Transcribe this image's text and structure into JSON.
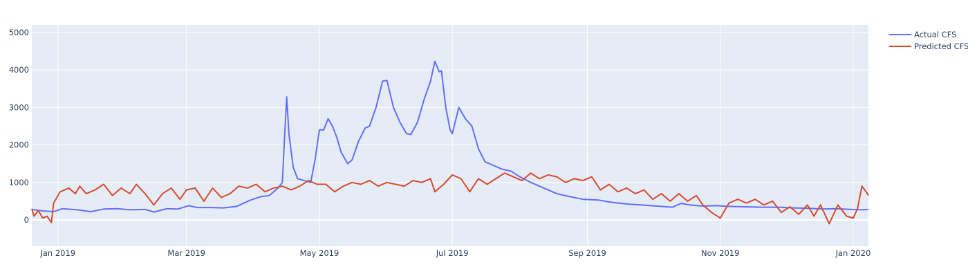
{
  "chart_data": {
    "type": "line",
    "title": "",
    "xlabel": "",
    "ylabel": "",
    "xlim": [
      "2018-12-20",
      "2020-01-08"
    ],
    "ylim": [
      -700,
      5200
    ],
    "x_ticks": [
      {
        "date": "2019-01-01",
        "label": "Jan 2019"
      },
      {
        "date": "2019-03-01",
        "label": "Mar 2019"
      },
      {
        "date": "2019-05-01",
        "label": "May 2019"
      },
      {
        "date": "2019-07-01",
        "label": "Jul 2019"
      },
      {
        "date": "2019-09-01",
        "label": "Sep 2019"
      },
      {
        "date": "2019-11-01",
        "label": "Nov 2019"
      },
      {
        "date": "2020-01-01",
        "label": "Jan 2020"
      }
    ],
    "y_ticks": [
      0,
      1000,
      2000,
      3000,
      4000,
      5000
    ],
    "grid": true,
    "legend_position": "top-right",
    "plot_background": "#e5ecf6",
    "series": [
      {
        "name": "Actual CFS",
        "color": "#636efa",
        "points": [
          [
            "2018-12-20",
            280
          ],
          [
            "2018-12-25",
            240
          ],
          [
            "2018-12-30",
            220
          ],
          [
            "2019-01-03",
            300
          ],
          [
            "2019-01-10",
            270
          ],
          [
            "2019-01-16",
            220
          ],
          [
            "2019-01-22",
            290
          ],
          [
            "2019-01-28",
            300
          ],
          [
            "2019-02-03",
            270
          ],
          [
            "2019-02-10",
            280
          ],
          [
            "2019-02-14",
            210
          ],
          [
            "2019-02-20",
            300
          ],
          [
            "2019-02-25",
            290
          ],
          [
            "2019-03-02",
            380
          ],
          [
            "2019-03-06",
            330
          ],
          [
            "2019-03-12",
            330
          ],
          [
            "2019-03-18",
            320
          ],
          [
            "2019-03-24",
            360
          ],
          [
            "2019-03-30",
            520
          ],
          [
            "2019-04-04",
            620
          ],
          [
            "2019-04-08",
            650
          ],
          [
            "2019-04-12",
            850
          ],
          [
            "2019-04-14",
            1000
          ],
          [
            "2019-04-15",
            2200
          ],
          [
            "2019-04-16",
            3280
          ],
          [
            "2019-04-17",
            2300
          ],
          [
            "2019-04-19",
            1400
          ],
          [
            "2019-04-21",
            1100
          ],
          [
            "2019-04-24",
            1050
          ],
          [
            "2019-04-27",
            1000
          ],
          [
            "2019-04-29",
            1600
          ],
          [
            "2019-05-01",
            2400
          ],
          [
            "2019-05-03",
            2400
          ],
          [
            "2019-05-05",
            2700
          ],
          [
            "2019-05-07",
            2500
          ],
          [
            "2019-05-09",
            2200
          ],
          [
            "2019-05-11",
            1800
          ],
          [
            "2019-05-14",
            1500
          ],
          [
            "2019-05-16",
            1600
          ],
          [
            "2019-05-19",
            2100
          ],
          [
            "2019-05-22",
            2450
          ],
          [
            "2019-05-24",
            2500
          ],
          [
            "2019-05-27",
            3000
          ],
          [
            "2019-05-30",
            3700
          ],
          [
            "2019-06-01",
            3720
          ],
          [
            "2019-06-04",
            3000
          ],
          [
            "2019-06-07",
            2600
          ],
          [
            "2019-06-10",
            2300
          ],
          [
            "2019-06-12",
            2280
          ],
          [
            "2019-06-15",
            2600
          ],
          [
            "2019-06-18",
            3200
          ],
          [
            "2019-06-21",
            3700
          ],
          [
            "2019-06-23",
            4230
          ],
          [
            "2019-06-25",
            3950
          ],
          [
            "2019-06-26",
            3980
          ],
          [
            "2019-06-28",
            3000
          ],
          [
            "2019-06-30",
            2400
          ],
          [
            "2019-07-01",
            2300
          ],
          [
            "2019-07-04",
            3000
          ],
          [
            "2019-07-07",
            2700
          ],
          [
            "2019-07-10",
            2500
          ],
          [
            "2019-07-13",
            1900
          ],
          [
            "2019-07-16",
            1550
          ],
          [
            "2019-07-20",
            1450
          ],
          [
            "2019-07-24",
            1350
          ],
          [
            "2019-07-28",
            1300
          ],
          [
            "2019-08-01",
            1150
          ],
          [
            "2019-08-06",
            1000
          ],
          [
            "2019-08-12",
            850
          ],
          [
            "2019-08-18",
            700
          ],
          [
            "2019-08-24",
            620
          ],
          [
            "2019-08-30",
            550
          ],
          [
            "2019-09-06",
            530
          ],
          [
            "2019-09-12",
            470
          ],
          [
            "2019-09-20",
            420
          ],
          [
            "2019-09-28",
            390
          ],
          [
            "2019-10-05",
            360
          ],
          [
            "2019-10-10",
            340
          ],
          [
            "2019-10-14",
            440
          ],
          [
            "2019-10-18",
            400
          ],
          [
            "2019-10-24",
            370
          ],
          [
            "2019-10-30",
            380
          ],
          [
            "2019-11-05",
            360
          ],
          [
            "2019-11-12",
            350
          ],
          [
            "2019-11-20",
            340
          ],
          [
            "2019-11-28",
            340
          ],
          [
            "2019-12-05",
            320
          ],
          [
            "2019-12-12",
            310
          ],
          [
            "2019-12-18",
            290
          ],
          [
            "2019-12-24",
            300
          ],
          [
            "2019-12-31",
            280
          ],
          [
            "2020-01-05",
            270
          ],
          [
            "2020-01-08",
            280
          ]
        ]
      },
      {
        "name": "Predicted CFS",
        "color": "#d64a2e",
        "points": [
          [
            "2018-12-20",
            300
          ],
          [
            "2018-12-21",
            100
          ],
          [
            "2018-12-23",
            250
          ],
          [
            "2018-12-25",
            50
          ],
          [
            "2018-12-27",
            100
          ],
          [
            "2018-12-29",
            -70
          ],
          [
            "2018-12-30",
            450
          ],
          [
            "2019-01-02",
            750
          ],
          [
            "2019-01-06",
            850
          ],
          [
            "2019-01-09",
            700
          ],
          [
            "2019-01-11",
            900
          ],
          [
            "2019-01-14",
            700
          ],
          [
            "2019-01-18",
            800
          ],
          [
            "2019-01-22",
            950
          ],
          [
            "2019-01-26",
            650
          ],
          [
            "2019-01-30",
            850
          ],
          [
            "2019-02-03",
            700
          ],
          [
            "2019-02-06",
            950
          ],
          [
            "2019-02-10",
            700
          ],
          [
            "2019-02-14",
            400
          ],
          [
            "2019-02-18",
            700
          ],
          [
            "2019-02-22",
            850
          ],
          [
            "2019-02-26",
            550
          ],
          [
            "2019-03-01",
            800
          ],
          [
            "2019-03-05",
            850
          ],
          [
            "2019-03-09",
            500
          ],
          [
            "2019-03-13",
            850
          ],
          [
            "2019-03-17",
            600
          ],
          [
            "2019-03-21",
            700
          ],
          [
            "2019-03-25",
            900
          ],
          [
            "2019-03-29",
            850
          ],
          [
            "2019-04-02",
            950
          ],
          [
            "2019-04-06",
            750
          ],
          [
            "2019-04-10",
            850
          ],
          [
            "2019-04-14",
            900
          ],
          [
            "2019-04-18",
            800
          ],
          [
            "2019-04-22",
            900
          ],
          [
            "2019-04-26",
            1050
          ],
          [
            "2019-04-30",
            950
          ],
          [
            "2019-05-04",
            950
          ],
          [
            "2019-05-08",
            750
          ],
          [
            "2019-05-12",
            900
          ],
          [
            "2019-05-16",
            1000
          ],
          [
            "2019-05-20",
            950
          ],
          [
            "2019-05-24",
            1050
          ],
          [
            "2019-05-28",
            900
          ],
          [
            "2019-06-01",
            1000
          ],
          [
            "2019-06-05",
            950
          ],
          [
            "2019-06-09",
            900
          ],
          [
            "2019-06-13",
            1050
          ],
          [
            "2019-06-17",
            1000
          ],
          [
            "2019-06-21",
            1100
          ],
          [
            "2019-06-23",
            750
          ],
          [
            "2019-06-27",
            950
          ],
          [
            "2019-07-01",
            1200
          ],
          [
            "2019-07-05",
            1100
          ],
          [
            "2019-07-09",
            750
          ],
          [
            "2019-07-13",
            1100
          ],
          [
            "2019-07-17",
            950
          ],
          [
            "2019-07-21",
            1100
          ],
          [
            "2019-07-25",
            1250
          ],
          [
            "2019-07-29",
            1150
          ],
          [
            "2019-08-02",
            1050
          ],
          [
            "2019-08-06",
            1250
          ],
          [
            "2019-08-10",
            1100
          ],
          [
            "2019-08-14",
            1200
          ],
          [
            "2019-08-18",
            1150
          ],
          [
            "2019-08-22",
            1000
          ],
          [
            "2019-08-26",
            1100
          ],
          [
            "2019-08-30",
            1050
          ],
          [
            "2019-09-03",
            1150
          ],
          [
            "2019-09-07",
            800
          ],
          [
            "2019-09-11",
            950
          ],
          [
            "2019-09-15",
            750
          ],
          [
            "2019-09-19",
            850
          ],
          [
            "2019-09-23",
            700
          ],
          [
            "2019-09-27",
            800
          ],
          [
            "2019-10-01",
            550
          ],
          [
            "2019-10-05",
            700
          ],
          [
            "2019-10-09",
            500
          ],
          [
            "2019-10-13",
            700
          ],
          [
            "2019-10-17",
            500
          ],
          [
            "2019-10-21",
            650
          ],
          [
            "2019-10-24",
            400
          ],
          [
            "2019-10-28",
            200
          ],
          [
            "2019-11-01",
            50
          ],
          [
            "2019-11-05",
            450
          ],
          [
            "2019-11-09",
            550
          ],
          [
            "2019-11-13",
            450
          ],
          [
            "2019-11-17",
            550
          ],
          [
            "2019-11-21",
            400
          ],
          [
            "2019-11-25",
            500
          ],
          [
            "2019-11-29",
            200
          ],
          [
            "2019-12-03",
            350
          ],
          [
            "2019-12-07",
            150
          ],
          [
            "2019-12-11",
            400
          ],
          [
            "2019-12-14",
            100
          ],
          [
            "2019-12-17",
            400
          ],
          [
            "2019-12-21",
            -100
          ],
          [
            "2019-12-25",
            400
          ],
          [
            "2019-12-29",
            100
          ],
          [
            "2020-01-01",
            50
          ],
          [
            "2020-01-03",
            300
          ],
          [
            "2020-01-05",
            900
          ],
          [
            "2020-01-07",
            750
          ],
          [
            "2020-01-08",
            650
          ]
        ]
      }
    ]
  }
}
